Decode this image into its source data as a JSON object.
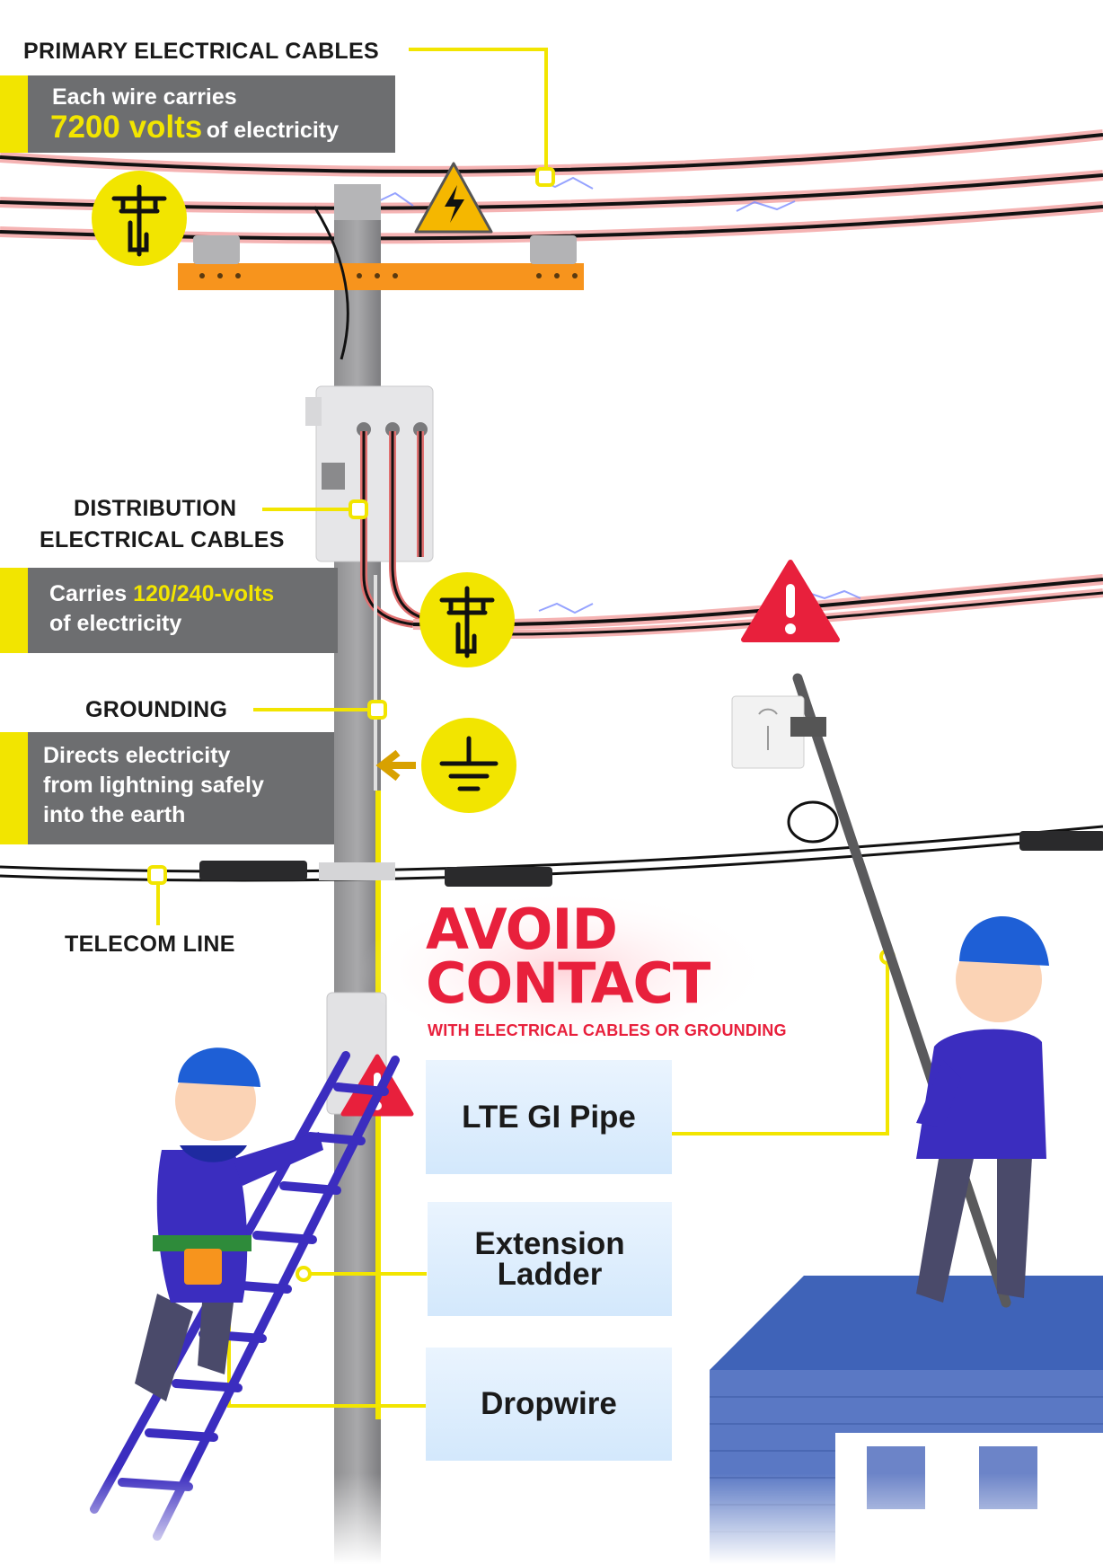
{
  "labels": {
    "primary_title": "PRIMARY ELECTRICAL CABLES",
    "primary_desc_line1": "Each wire carries",
    "primary_desc_value": "7200 volts",
    "primary_desc_tail": "of electricity",
    "distribution_title_line1": "DISTRIBUTION",
    "distribution_title_line2": "ELECTRICAL CABLES",
    "distribution_desc_prefix": "Carries",
    "distribution_desc_value": "120/240-volts",
    "distribution_desc_tail": "of electricity",
    "grounding_title": "GROUNDING",
    "grounding_desc_line1": "Directs electricity",
    "grounding_desc_line2": "from lightning safely",
    "grounding_desc_line3": "into the earth",
    "telecom_title": "TELECOM LINE"
  },
  "warning": {
    "line1": "AVOID",
    "line2": "CONTACT",
    "subtitle": "WITH ELECTRICAL CABLES OR GROUNDING"
  },
  "tools": [
    {
      "label": "LTE GI Pipe"
    },
    {
      "label": "Extension Ladder"
    },
    {
      "label": "Dropwire"
    }
  ],
  "icons": [
    "power-pole-icon",
    "high-voltage-icon",
    "warning-icon",
    "ground-icon",
    "router-icon"
  ],
  "colors": {
    "accent_yellow": "#f2e500",
    "warning_red": "#e8203c",
    "panel_gray": "#6d6e70",
    "crossarm_orange": "#f7941d",
    "helmet_blue": "#1e5fd6",
    "uniform_purple": "#3b2dbf",
    "roof_blue": "#3f63b8"
  }
}
